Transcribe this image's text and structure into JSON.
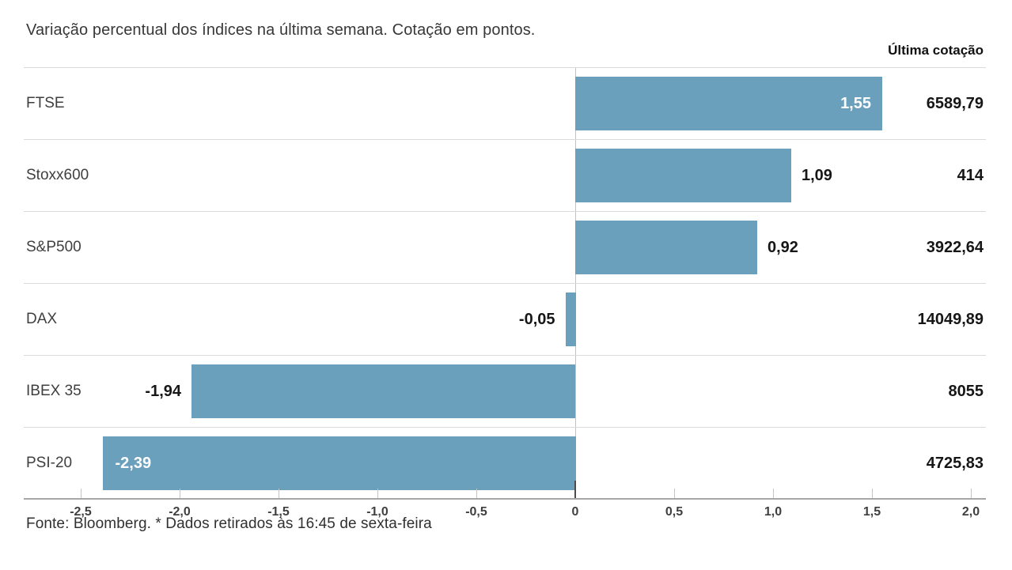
{
  "chart_data": {
    "type": "bar",
    "orientation": "horizontal",
    "title": "Variação percentual dos índices na última semana. Cotação em pontos.",
    "value_column_header": "Última cotação",
    "categories": [
      "FTSE",
      "Stoxx600",
      "S&P500",
      "DAX",
      "IBEX 35",
      "PSI-20"
    ],
    "values": [
      1.55,
      1.09,
      0.92,
      -0.05,
      -1.94,
      -2.39
    ],
    "value_labels": [
      "1,55",
      "1,09",
      "0,92",
      "-0,05",
      "-1,94",
      "-2,39"
    ],
    "label_inside_bar": [
      true,
      false,
      false,
      false,
      false,
      true
    ],
    "quotes": [
      "6589,79",
      "414",
      "3922,64",
      "14049,89",
      "8055",
      "4725,83"
    ],
    "xlim": [
      -2.5,
      2.0
    ],
    "x_ticks": [
      -2.5,
      -2.0,
      -1.5,
      -1.0,
      -0.5,
      0,
      0.5,
      1.0,
      1.5,
      2.0
    ],
    "x_tick_labels": [
      "-2,5",
      "-2,0",
      "-1,5",
      "-1,0",
      "-0,5",
      "0",
      "0,5",
      "1,0",
      "1,5",
      "2,0"
    ],
    "footer": "Fonte: Bloomberg.  * Dados retirados às 16:45 de sexta-feira",
    "grid": "row-separators-only",
    "legend": "none",
    "colors": {
      "bar": "#6aa0bc",
      "value_label_inside": "#fdfdfd",
      "value_label_outside": "#161616",
      "zero_gridline": "#c2c2c2",
      "axis_line": "#a6a6a6",
      "tick": "#c4c4c4",
      "zero_tick": "#4c4c4c"
    }
  }
}
